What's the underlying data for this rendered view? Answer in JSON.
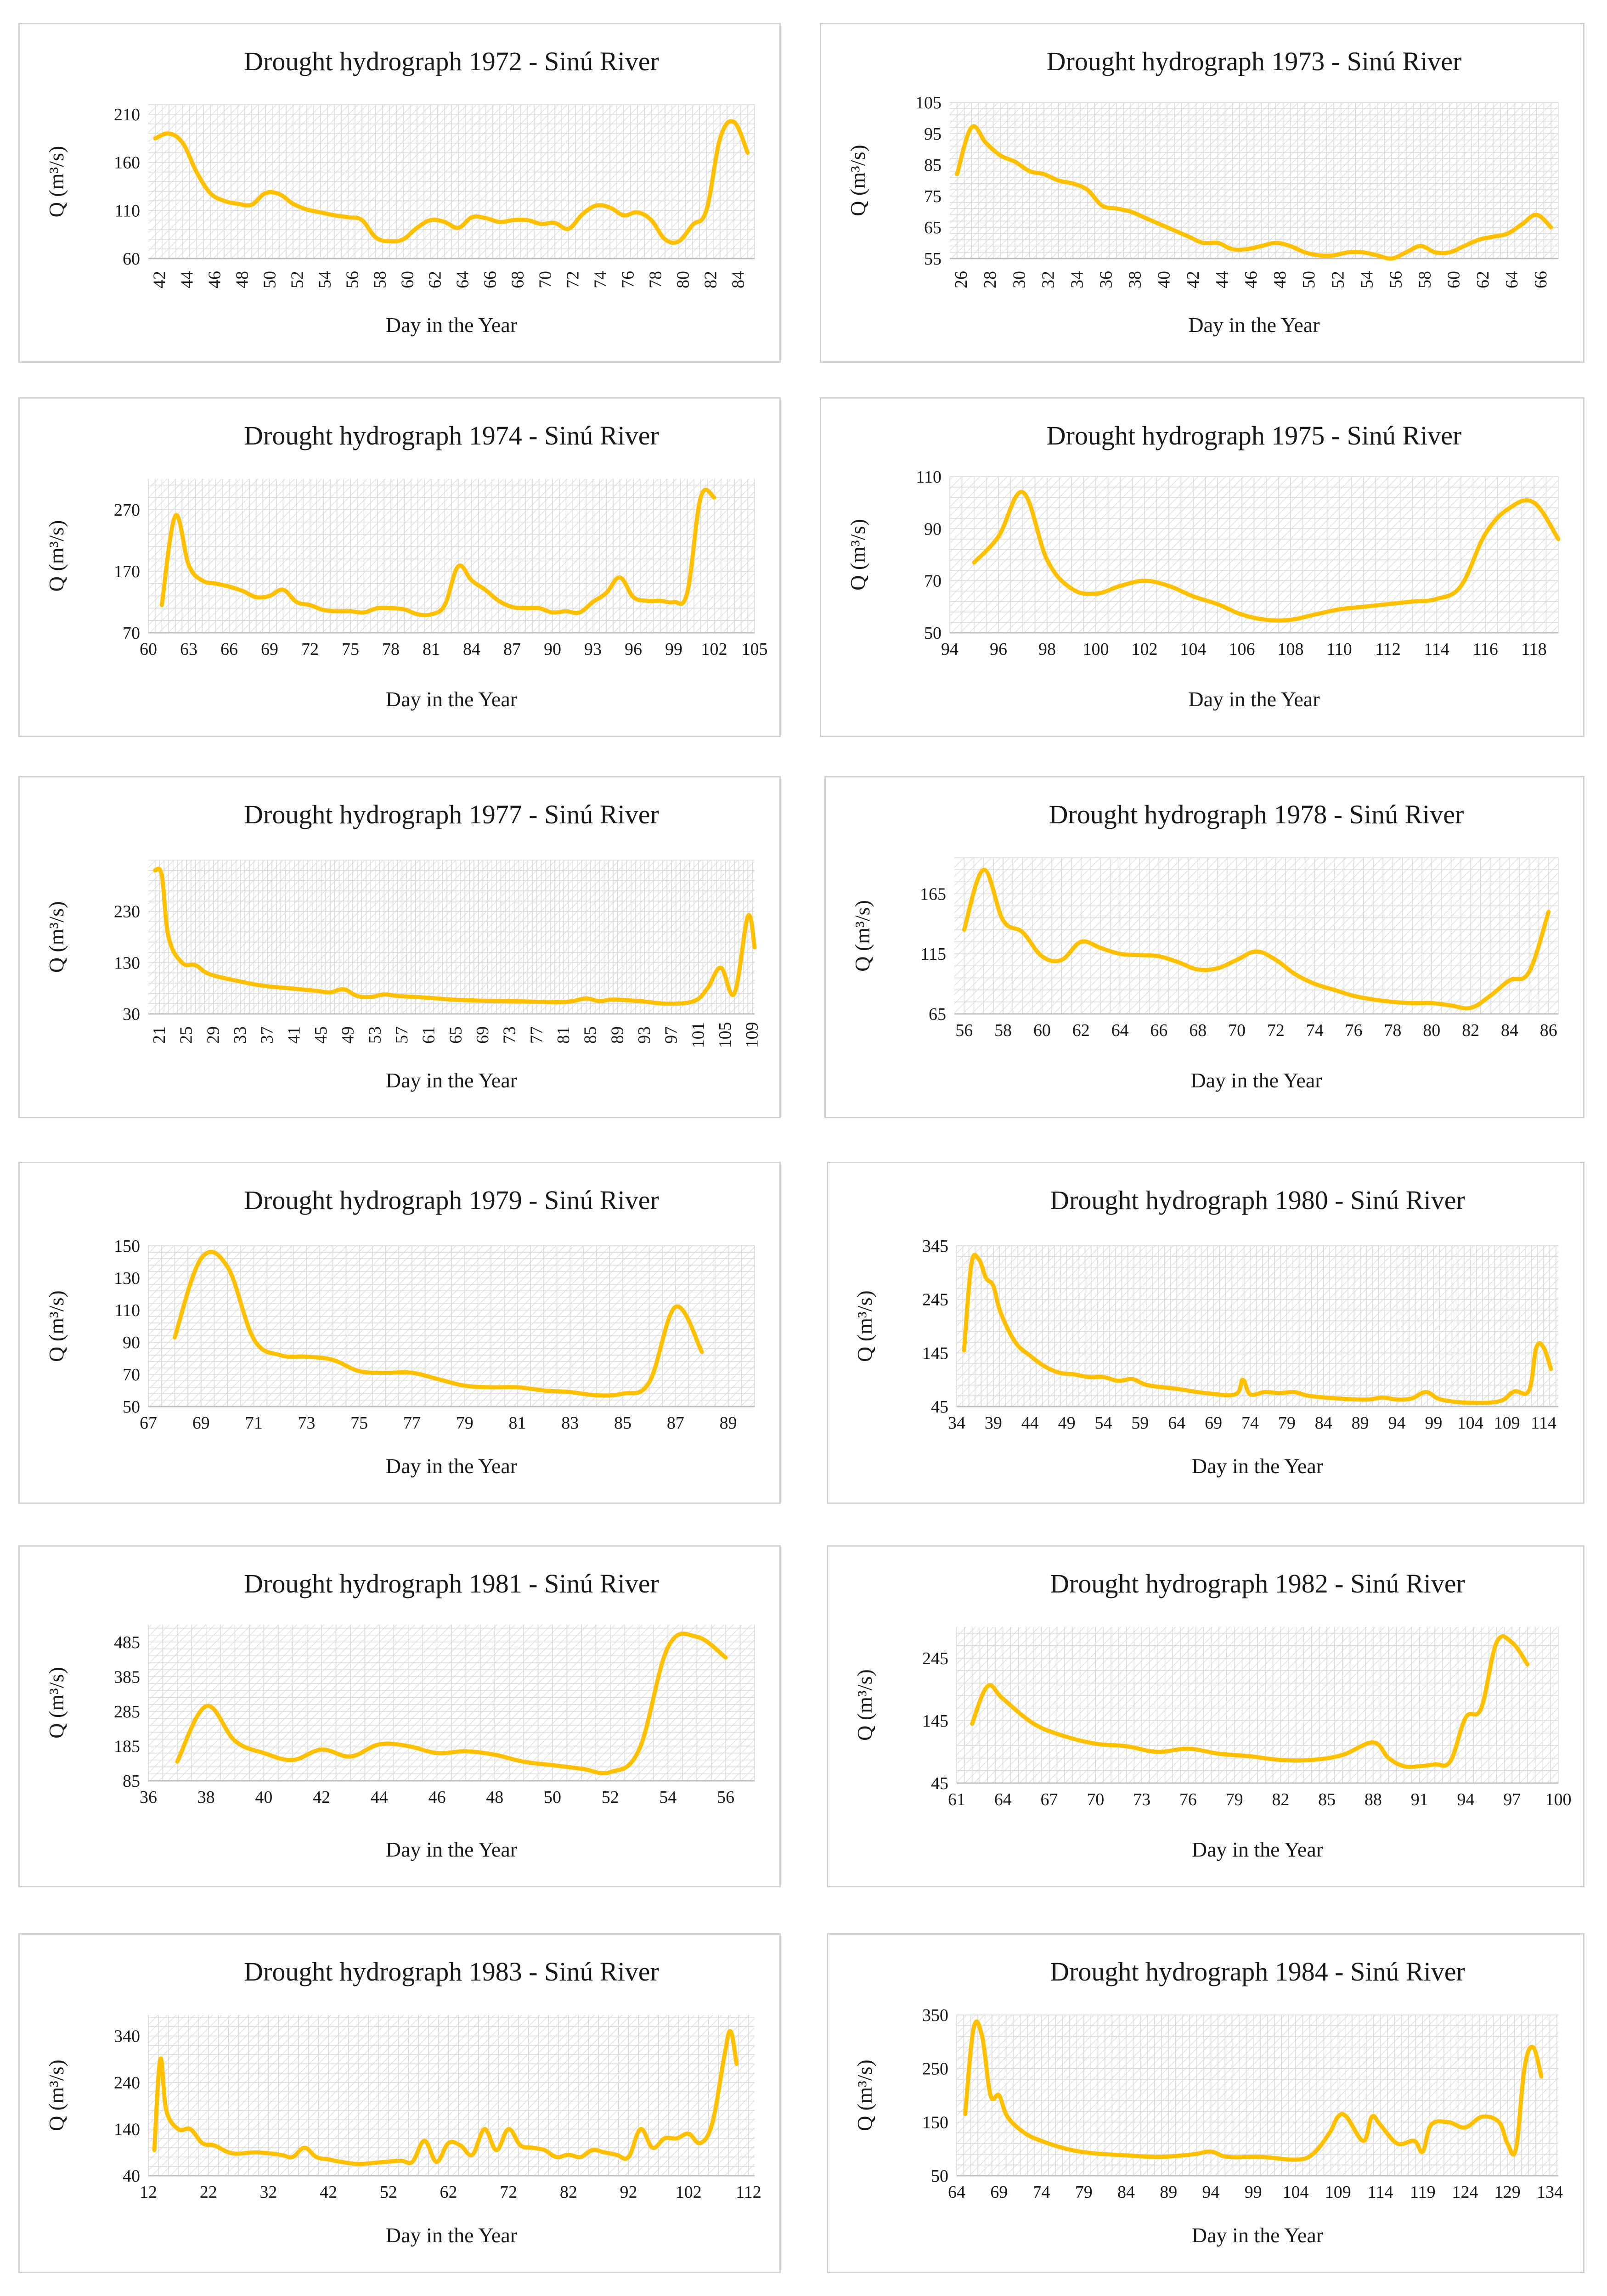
{
  "style": {
    "series_color": "#FFC000",
    "grid_color": "#d9d9d9",
    "hatch_color": "#e2e2e2",
    "frame_color": "#d0d0d0"
  },
  "chart_data": [
    {
      "type": "line",
      "title": "Drought hydrograph 1972 - Sinú River",
      "xlabel": "Day in the Year",
      "ylabel": "Q (m³/s)",
      "xlim": [
        41.5,
        85.5
      ],
      "ylim": [
        60,
        220
      ],
      "xticks": [
        42,
        44,
        46,
        48,
        50,
        52,
        54,
        56,
        58,
        60,
        62,
        64,
        66,
        68,
        70,
        72,
        74,
        76,
        78,
        80,
        82,
        84
      ],
      "yticks": [
        60,
        110,
        160,
        210
      ],
      "x": [
        42,
        43,
        44,
        45,
        46,
        47,
        48,
        49,
        50,
        51,
        52,
        53,
        54,
        55,
        56,
        57,
        58,
        59,
        60,
        61,
        62,
        63,
        64,
        65,
        66,
        67,
        68,
        69,
        70,
        71,
        72,
        73,
        74,
        75,
        76,
        77,
        78,
        79,
        80,
        81,
        82,
        83,
        84,
        85
      ],
      "y": [
        185,
        190,
        180,
        150,
        128,
        120,
        117,
        116,
        128,
        127,
        117,
        111,
        108,
        105,
        103,
        100,
        82,
        78,
        80,
        92,
        100,
        98,
        92,
        103,
        102,
        98,
        100,
        100,
        96,
        97,
        91,
        106,
        115,
        113,
        105,
        108,
        100,
        80,
        78,
        95,
        110,
        185,
        202,
        170
      ]
    },
    {
      "type": "line",
      "title": "Drought hydrograph 1973 - Sinú River",
      "xlabel": "Day in the Year",
      "ylabel": "Q (m³/s)",
      "xlim": [
        25.5,
        67.5
      ],
      "ylim": [
        55,
        105
      ],
      "xticks": [
        26,
        28,
        30,
        32,
        34,
        36,
        38,
        40,
        42,
        44,
        46,
        48,
        50,
        52,
        54,
        56,
        58,
        60,
        62,
        64,
        66
      ],
      "yticks": [
        55,
        65,
        75,
        85,
        95,
        105
      ],
      "x": [
        26,
        27,
        28,
        29,
        30,
        31,
        32,
        33,
        34,
        35,
        36,
        37,
        38,
        39,
        40,
        41,
        42,
        43,
        44,
        45,
        46,
        47,
        48,
        49,
        50,
        51,
        52,
        53,
        54,
        55,
        56,
        57,
        58,
        59,
        60,
        61,
        62,
        63,
        64,
        65,
        66,
        67
      ],
      "y": [
        82,
        97,
        92,
        88,
        86,
        83,
        82,
        80,
        79,
        77,
        72,
        71,
        70,
        68,
        66,
        64,
        62,
        60,
        60,
        58,
        58,
        59,
        60,
        59,
        57,
        56,
        56,
        57,
        57,
        56,
        55,
        57,
        59,
        57,
        57,
        59,
        61,
        62,
        63,
        66,
        69,
        65
      ]
    },
    {
      "type": "line",
      "title": "Drought hydrograph 1974 - Sinú River",
      "xlabel": "Day in the Year",
      "ylabel": "Q (m³/s)",
      "xlim": [
        60,
        105
      ],
      "ylim": [
        70,
        320
      ],
      "xticks": [
        60,
        63,
        66,
        69,
        72,
        75,
        78,
        81,
        84,
        87,
        90,
        93,
        96,
        99,
        102,
        105
      ],
      "yticks": [
        70,
        170,
        270
      ],
      "x": [
        61,
        62,
        63,
        64,
        65,
        66,
        67,
        68,
        69,
        70,
        71,
        72,
        73,
        74,
        75,
        76,
        77,
        78,
        79,
        80,
        81,
        82,
        83,
        84,
        85,
        86,
        87,
        88,
        89,
        90,
        91,
        92,
        93,
        94,
        95,
        96,
        97,
        98,
        99,
        100,
        101,
        102
      ],
      "y": [
        115,
        260,
        180,
        155,
        150,
        145,
        138,
        128,
        130,
        140,
        120,
        115,
        107,
        105,
        105,
        103,
        110,
        110,
        108,
        100,
        100,
        115,
        178,
        155,
        140,
        122,
        112,
        110,
        110,
        103,
        105,
        103,
        120,
        135,
        160,
        128,
        122,
        122,
        120,
        135,
        290,
        290
      ]
    },
    {
      "type": "line",
      "title": "Drought hydrograph 1975 - Sinú River",
      "xlabel": "Day in the Year",
      "ylabel": "Q (m³/s)",
      "xlim": [
        94,
        119
      ],
      "ylim": [
        50,
        110
      ],
      "xticks": [
        94,
        96,
        98,
        100,
        102,
        104,
        106,
        108,
        110,
        112,
        114,
        116,
        118
      ],
      "yticks": [
        50,
        70,
        90,
        110
      ],
      "x": [
        95,
        96,
        97,
        98,
        99,
        100,
        101,
        102,
        103,
        104,
        105,
        106,
        107,
        108,
        109,
        110,
        111,
        112,
        113,
        114,
        115,
        116,
        117,
        118,
        119
      ],
      "y": [
        77,
        87,
        104,
        78,
        67,
        65,
        68,
        70,
        68,
        64,
        61,
        57,
        55,
        55,
        57,
        59,
        60,
        61,
        62,
        63,
        68,
        88,
        98,
        100,
        86
      ]
    },
    {
      "type": "line",
      "title": "Drought hydrograph 1977 - Sinú River",
      "xlabel": "Day in the Year",
      "ylabel": "Q (m³/s)",
      "xlim": [
        20,
        110
      ],
      "ylim": [
        30,
        330
      ],
      "xticks": [
        21,
        25,
        29,
        33,
        37,
        41,
        45,
        49,
        53,
        57,
        61,
        65,
        69,
        73,
        77,
        81,
        85,
        89,
        93,
        97,
        101,
        105,
        109
      ],
      "yticks": [
        30,
        130,
        230
      ],
      "x": [
        21,
        22,
        23,
        25,
        27,
        29,
        33,
        37,
        41,
        45,
        47,
        49,
        51,
        53,
        55,
        57,
        61,
        65,
        69,
        73,
        77,
        81,
        83,
        85,
        87,
        89,
        93,
        97,
        101,
        103,
        105,
        107,
        109,
        110
      ],
      "y": [
        310,
        300,
        180,
        130,
        125,
        108,
        95,
        85,
        80,
        75,
        72,
        78,
        65,
        63,
        68,
        65,
        62,
        58,
        56,
        55,
        54,
        53,
        55,
        60,
        55,
        58,
        55,
        50,
        55,
        80,
        120,
        70,
        220,
        160
      ]
    },
    {
      "type": "line",
      "title": "Drought hydrograph 1978 - Sinú River",
      "xlabel": "Day in the Year",
      "ylabel": "Q (m³/s)",
      "xlim": [
        55.5,
        86.5
      ],
      "ylim": [
        65,
        195
      ],
      "xticks": [
        56,
        58,
        60,
        62,
        64,
        66,
        68,
        70,
        72,
        74,
        76,
        78,
        80,
        82,
        84,
        86
      ],
      "yticks": [
        65,
        115,
        165
      ],
      "x": [
        56,
        57,
        58,
        59,
        60,
        61,
        62,
        63,
        64,
        65,
        66,
        67,
        68,
        69,
        70,
        71,
        72,
        73,
        74,
        75,
        76,
        77,
        78,
        79,
        80,
        81,
        82,
        83,
        84,
        85,
        86
      ],
      "y": [
        135,
        185,
        143,
        133,
        113,
        110,
        125,
        120,
        115,
        114,
        113,
        108,
        102,
        103,
        110,
        117,
        110,
        98,
        90,
        85,
        80,
        77,
        75,
        74,
        74,
        72,
        70,
        80,
        93,
        100,
        150
      ]
    },
    {
      "type": "line",
      "title": "Drought hydrograph 1979 - Sinú River",
      "xlabel": "Day in the Year",
      "ylabel": "Q (m³/s)",
      "xlim": [
        67,
        90
      ],
      "ylim": [
        50,
        150
      ],
      "xticks": [
        67,
        69,
        71,
        73,
        75,
        77,
        79,
        81,
        83,
        85,
        87,
        89
      ],
      "yticks": [
        50,
        70,
        90,
        110,
        130,
        150
      ],
      "x": [
        68,
        69,
        70,
        71,
        72,
        73,
        74,
        75,
        76,
        77,
        78,
        79,
        80,
        81,
        82,
        83,
        84,
        85,
        86,
        87,
        88
      ],
      "y": [
        93,
        142,
        137,
        92,
        82,
        81,
        79,
        72,
        71,
        71,
        67,
        63,
        62,
        62,
        60,
        59,
        57,
        58,
        65,
        112,
        84
      ]
    },
    {
      "type": "line",
      "title": "Drought hydrograph 1980 - Sinú River",
      "xlabel": "Day in the Year",
      "ylabel": "Q (m³/s)",
      "xlim": [
        34,
        116
      ],
      "ylim": [
        45,
        345
      ],
      "xticks": [
        34,
        39,
        44,
        49,
        54,
        59,
        64,
        69,
        74,
        79,
        84,
        89,
        94,
        99,
        104,
        109,
        114
      ],
      "yticks": [
        45,
        145,
        245,
        345
      ],
      "x": [
        35,
        36,
        37,
        38,
        39,
        40,
        42,
        44,
        46,
        48,
        50,
        52,
        54,
        56,
        58,
        60,
        64,
        68,
        72,
        73,
        74,
        76,
        78,
        80,
        82,
        86,
        90,
        92,
        94,
        96,
        98,
        100,
        104,
        108,
        110,
        112,
        113,
        114,
        115
      ],
      "y": [
        150,
        310,
        320,
        285,
        270,
        220,
        165,
        140,
        120,
        108,
        105,
        100,
        100,
        93,
        96,
        85,
        78,
        70,
        68,
        95,
        68,
        72,
        70,
        72,
        65,
        60,
        58,
        62,
        58,
        60,
        72,
        58,
        52,
        55,
        73,
        75,
        155,
        155,
        115
      ]
    },
    {
      "type": "line",
      "title": "Drought hydrograph 1981 - Sinú River",
      "xlabel": "Day in the Year",
      "ylabel": "Q (m³/s)",
      "xlim": [
        36,
        57
      ],
      "ylim": [
        85,
        535
      ],
      "xticks": [
        36,
        38,
        40,
        42,
        44,
        46,
        48,
        50,
        52,
        54,
        56
      ],
      "yticks": [
        85,
        185,
        285,
        385,
        485
      ],
      "x": [
        37,
        38,
        39,
        40,
        41,
        42,
        43,
        44,
        45,
        46,
        47,
        48,
        49,
        50,
        51,
        52,
        53,
        54,
        55,
        56
      ],
      "y": [
        140,
        300,
        200,
        165,
        145,
        175,
        155,
        190,
        185,
        165,
        170,
        160,
        140,
        130,
        120,
        110,
        175,
        470,
        500,
        440
      ]
    },
    {
      "type": "line",
      "title": "Drought hydrograph 1982 - Sinú River",
      "xlabel": "Day in the Year",
      "ylabel": "Q (m³/s)",
      "xlim": [
        61,
        100
      ],
      "ylim": [
        45,
        295
      ],
      "xticks": [
        61,
        64,
        67,
        70,
        73,
        76,
        79,
        82,
        85,
        88,
        91,
        94,
        97,
        100
      ],
      "yticks": [
        45,
        145,
        245
      ],
      "x": [
        62,
        63,
        64,
        66,
        68,
        70,
        72,
        74,
        76,
        78,
        80,
        82,
        84,
        86,
        88,
        89,
        90,
        91,
        92,
        93,
        94,
        95,
        96,
        97,
        98
      ],
      "y": [
        140,
        200,
        180,
        140,
        120,
        108,
        104,
        95,
        100,
        92,
        88,
        82,
        82,
        90,
        110,
        85,
        72,
        72,
        75,
        80,
        150,
        165,
        270,
        270,
        235
      ]
    },
    {
      "type": "line",
      "title": "Drought hydrograph 1983 - Sinú River",
      "xlabel": "Day in the Year",
      "ylabel": "Q (m³/s)",
      "xlim": [
        12,
        113
      ],
      "ylim": [
        40,
        385
      ],
      "xticks": [
        12,
        22,
        32,
        42,
        52,
        62,
        72,
        82,
        92,
        102,
        112
      ],
      "yticks": [
        40,
        140,
        240,
        340
      ],
      "x": [
        13,
        14,
        15,
        17,
        19,
        21,
        23,
        26,
        30,
        34,
        36,
        38,
        40,
        42,
        44,
        47,
        50,
        54,
        56,
        58,
        60,
        62,
        64,
        66,
        68,
        70,
        72,
        74,
        76,
        78,
        80,
        82,
        84,
        86,
        88,
        90,
        92,
        94,
        96,
        98,
        100,
        102,
        104,
        106,
        108,
        109,
        110
      ],
      "y": [
        95,
        290,
        180,
        140,
        140,
        110,
        105,
        88,
        90,
        85,
        80,
        100,
        80,
        75,
        70,
        65,
        68,
        72,
        70,
        115,
        70,
        110,
        105,
        85,
        140,
        95,
        140,
        105,
        100,
        95,
        80,
        85,
        80,
        95,
        90,
        85,
        80,
        140,
        100,
        120,
        120,
        130,
        110,
        155,
        300,
        350,
        280
      ]
    },
    {
      "type": "line",
      "title": "Drought hydrograph 1984 - Sinú River",
      "xlabel": "Day in the Year",
      "ylabel": "Q (m³/s)",
      "xlim": [
        64,
        135
      ],
      "ylim": [
        50,
        350
      ],
      "xticks": [
        64,
        69,
        74,
        79,
        84,
        89,
        94,
        99,
        104,
        109,
        114,
        119,
        124,
        129,
        134
      ],
      "yticks": [
        50,
        150,
        250,
        350
      ],
      "x": [
        65,
        66,
        67,
        68,
        69,
        70,
        72,
        74,
        77,
        80,
        84,
        88,
        92,
        94,
        96,
        100,
        104,
        106,
        108,
        109,
        110,
        112,
        113,
        114,
        116,
        118,
        119,
        120,
        122,
        124,
        126,
        128,
        129,
        130,
        131,
        132,
        133
      ],
      "y": [
        165,
        325,
        310,
        200,
        200,
        160,
        130,
        115,
        100,
        92,
        88,
        85,
        90,
        95,
        85,
        85,
        80,
        90,
        130,
        160,
        160,
        115,
        160,
        145,
        110,
        115,
        95,
        145,
        150,
        140,
        160,
        150,
        110,
        100,
        250,
        290,
        235
      ]
    }
  ]
}
